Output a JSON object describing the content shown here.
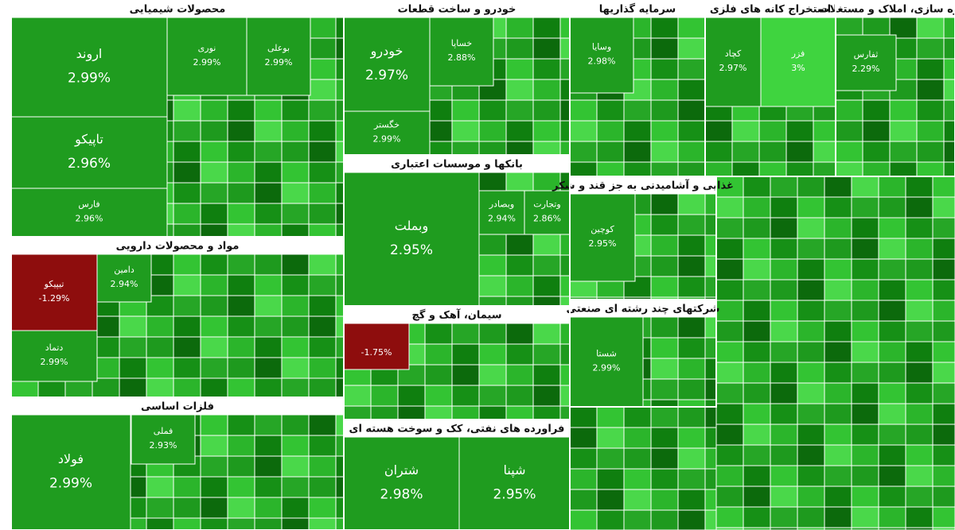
{
  "chart_data": {
    "type": "treemap",
    "groups": [
      {
        "name": "محصولات شیمیایی",
        "categories": [
          "اروند",
          "تاپیکو",
          "فارس",
          "نوری",
          "بوعلی"
        ],
        "values": [
          2.99,
          2.96,
          2.96,
          2.99,
          2.99
        ],
        "value_labels": [
          "2.99%",
          "2.96%",
          "2.96%",
          "2.99%",
          "2.99%"
        ]
      },
      {
        "name": "مواد و محصولات دارویی",
        "categories": [
          "تیپیکو",
          "دتماد",
          "دامین"
        ],
        "values": [
          -1.29,
          2.99,
          2.94
        ],
        "value_labels": [
          "-1.29%",
          "2.99%",
          "2.94%"
        ]
      },
      {
        "name": "فلزات اساسی",
        "categories": [
          "فولاد",
          "فملی"
        ],
        "values": [
          2.99,
          2.93
        ],
        "value_labels": [
          "2.99%",
          "2.93%"
        ]
      },
      {
        "name": "خودرو و ساخت قطعات",
        "categories": [
          "خودرو",
          "خساپا",
          "خگستر"
        ],
        "values": [
          2.97,
          2.88,
          2.99
        ],
        "value_labels": [
          "2.97%",
          "2.88%",
          "2.99%"
        ]
      },
      {
        "name": "بانکها و موسسات اعتباری",
        "categories": [
          "وبملت",
          "وبصادر",
          "وتجارت"
        ],
        "values": [
          2.95,
          2.94,
          2.86
        ],
        "value_labels": [
          "2.95%",
          "2.94%",
          "2.86%"
        ]
      },
      {
        "name": "سیمان، آهک و گچ",
        "categories": [
          null
        ],
        "values": [
          -1.75
        ],
        "value_labels": [
          "-1.75%"
        ]
      },
      {
        "name": "فراورده های نفتی، کک و سوخت هسته ای",
        "categories": [
          "شتران",
          "شپنا"
        ],
        "values": [
          2.98,
          2.95
        ],
        "value_labels": [
          "2.98%",
          "2.95%"
        ]
      },
      {
        "name": "سرمایه گذاریها",
        "categories": [
          "وسایا"
        ],
        "values": [
          2.98
        ],
        "value_labels": [
          "2.98%"
        ]
      },
      {
        "name": "استخراج کانه های فلزی",
        "categories": [
          "کچاد",
          "فزر"
        ],
        "values": [
          2.97,
          3
        ],
        "value_labels": [
          "2.97%",
          "3%"
        ]
      },
      {
        "name": "انبوه سازی، املاک و مستغلات",
        "categories": [
          "ثفارس"
        ],
        "values": [
          2.29
        ],
        "value_labels": [
          "2.29%"
        ]
      },
      {
        "name": "غذایی و آشامیدنی به جز قند و شکر",
        "categories": [
          "کوچین"
        ],
        "values": [
          2.95
        ],
        "value_labels": [
          "2.95%"
        ]
      },
      {
        "name": "شرکتهای چند رشته ای صنعتی",
        "categories": [
          "شستا"
        ],
        "values": [
          2.99
        ],
        "value_labels": [
          "2.99%"
        ]
      }
    ]
  }
}
